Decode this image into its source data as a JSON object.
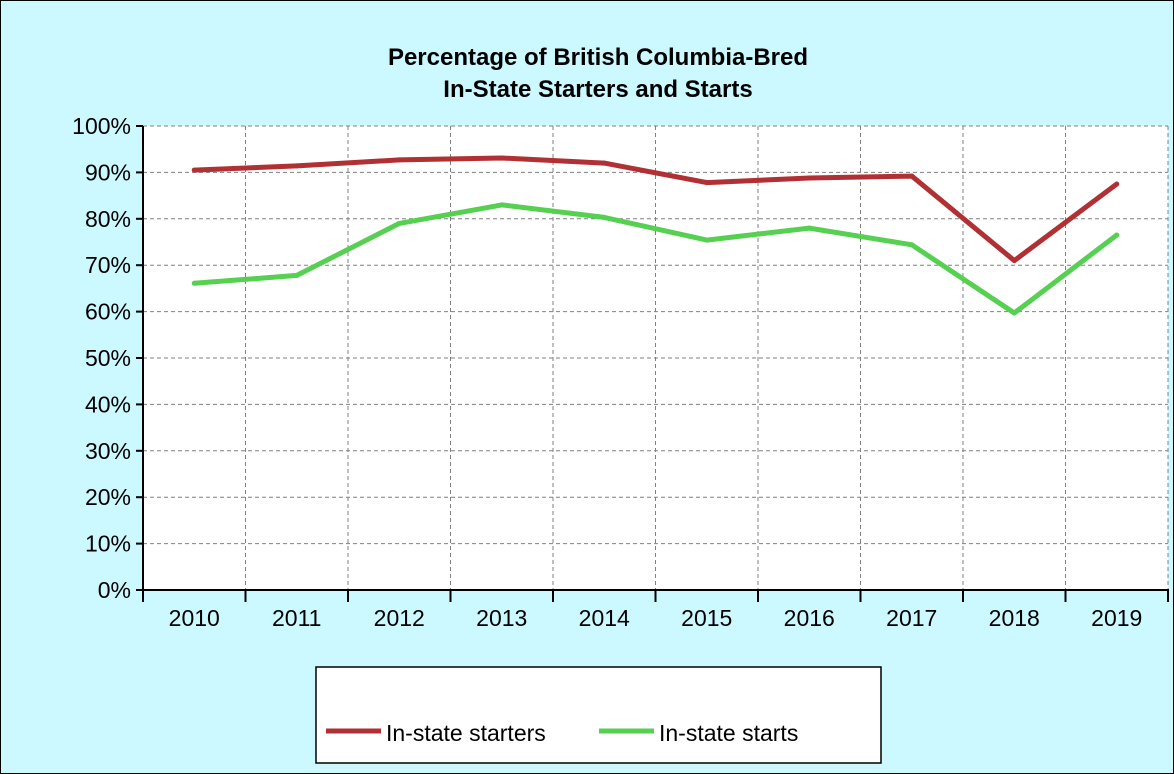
{
  "chart_data": {
    "type": "line",
    "title": [
      "Percentage of British Columbia-Bred",
      "In-State Starters and Starts"
    ],
    "xlabel": "",
    "ylabel": "",
    "categories": [
      "2010",
      "2011",
      "2012",
      "2013",
      "2014",
      "2015",
      "2016",
      "2017",
      "2018",
      "2019"
    ],
    "series": [
      {
        "name": "In-state starters",
        "color": "#b03034",
        "values": [
          90.5,
          91.4,
          92.7,
          93.1,
          92.0,
          87.8,
          88.8,
          89.2,
          71.0,
          87.5
        ]
      },
      {
        "name": "In-state starts",
        "color": "#55d050",
        "values": [
          66.1,
          67.8,
          79.0,
          83.0,
          80.3,
          75.4,
          78.0,
          74.4,
          59.7,
          76.5
        ]
      }
    ],
    "ylim": [
      0,
      100
    ],
    "yticks": [
      0,
      10,
      20,
      30,
      40,
      50,
      60,
      70,
      80,
      90,
      100
    ],
    "ytick_labels": [
      "0%",
      "10%",
      "20%",
      "30%",
      "40%",
      "50%",
      "60%",
      "70%",
      "80%",
      "90%",
      "100%"
    ],
    "grid": true,
    "legend_position": "bottom"
  },
  "colors": {
    "background": "#ccf8ff",
    "plot_background": "#ffffff",
    "grid": "#808080"
  }
}
